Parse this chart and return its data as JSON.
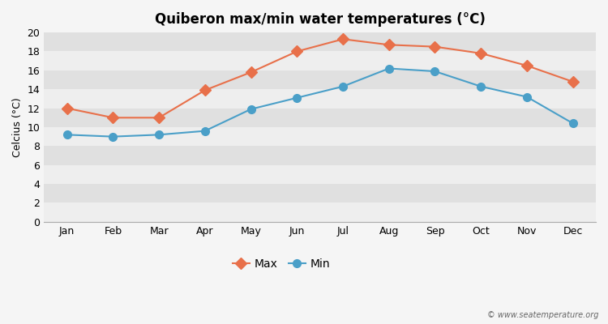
{
  "title": "Quiberon max/min water temperatures (°C)",
  "ylabel": "Celcius (°C)",
  "months": [
    "Jan",
    "Feb",
    "Mar",
    "Apr",
    "May",
    "Jun",
    "Jul",
    "Aug",
    "Sep",
    "Oct",
    "Nov",
    "Dec"
  ],
  "max_temps": [
    12.0,
    11.0,
    11.0,
    13.9,
    15.8,
    18.0,
    19.3,
    18.7,
    18.5,
    17.8,
    16.5,
    14.8
  ],
  "min_temps": [
    9.2,
    9.0,
    9.2,
    9.6,
    11.9,
    13.1,
    14.3,
    16.2,
    15.9,
    14.3,
    13.2,
    10.4
  ],
  "max_color": "#e8704a",
  "min_color": "#4a9fc8",
  "bg_color": "#f5f5f5",
  "stripe_light": "#eeeeee",
  "stripe_dark": "#e0e0e0",
  "ylim": [
    0,
    20
  ],
  "yticks": [
    0,
    2,
    4,
    6,
    8,
    10,
    12,
    14,
    16,
    18,
    20
  ],
  "watermark": "© www.seatemperature.org",
  "legend_max": "Max",
  "legend_min": "Min"
}
